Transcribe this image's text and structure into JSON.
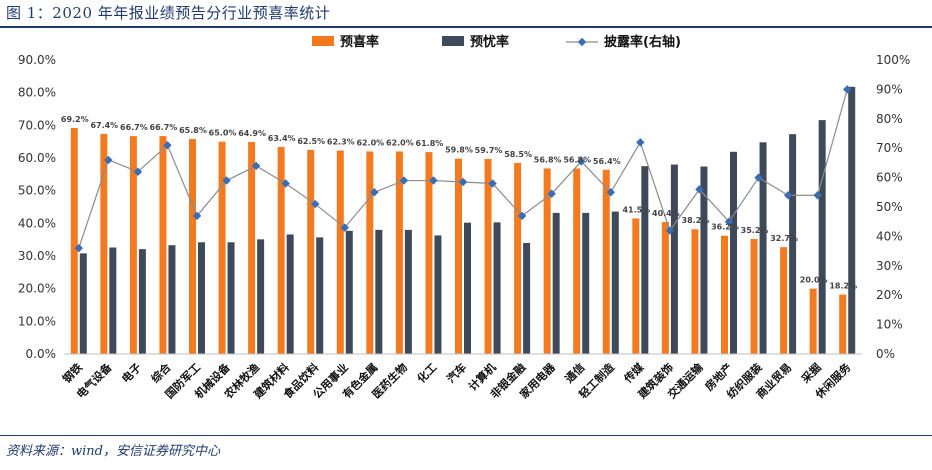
{
  "figure": {
    "title": "图 1：2020 年年报业绩预告分行业预喜率统计",
    "source": "资料来源：wind，安信证券研究中心"
  },
  "chart_data": {
    "type": "bar",
    "categories": [
      "钢铁",
      "电气设备",
      "电子",
      "综合",
      "国防军工",
      "机械设备",
      "农林牧渔",
      "建筑材料",
      "食品饮料",
      "公用事业",
      "有色金属",
      "医药生物",
      "化工",
      "汽车",
      "计算机",
      "非银金融",
      "家用电器",
      "通信",
      "轻工制造",
      "传媒",
      "建筑装饰",
      "交通运输",
      "房地产",
      "纺织服装",
      "商业贸易",
      "采掘",
      "休闲服务"
    ],
    "series": [
      {
        "name": "预喜率",
        "type": "bar",
        "axis": "left",
        "color": "#f47a20",
        "values": [
          69.2,
          67.4,
          66.7,
          66.7,
          65.8,
          65.0,
          64.9,
          63.4,
          62.5,
          62.3,
          62.0,
          62.0,
          61.8,
          59.8,
          59.7,
          58.5,
          56.8,
          56.8,
          56.4,
          41.5,
          40.4,
          38.2,
          36.2,
          35.2,
          32.7,
          20.0,
          18.2
        ],
        "labels": [
          "69.2%",
          "67.4%",
          "66.7%",
          "66.7%",
          "65.8%",
          "65.0%",
          "64.9%",
          "63.4%",
          "62.5%",
          "62.3%",
          "62.0%",
          "62.0%",
          "61.8%",
          "59.8%",
          "59.7%",
          "58.5%",
          "56.8%",
          "56.8%",
          "56.4%",
          "41.5%",
          "40.4%",
          "38.2%",
          "36.2%",
          "35.2%",
          "32.7%",
          "20.0%",
          "18.2%"
        ]
      },
      {
        "name": "预忧率",
        "type": "bar",
        "axis": "left",
        "color": "#3e4a5a",
        "values": [
          30.8,
          32.6,
          32.1,
          33.3,
          34.2,
          34.2,
          35.1,
          36.6,
          35.7,
          37.7,
          38.0,
          38.0,
          36.3,
          40.2,
          40.3,
          34.0,
          43.2,
          43.2,
          43.6,
          57.5,
          58.0,
          57.4,
          61.9,
          64.8,
          67.3,
          71.6,
          81.8
        ]
      },
      {
        "name": "披露率(右轴)",
        "type": "line",
        "axis": "right",
        "color": "#3b6db3",
        "values": [
          36,
          66,
          62,
          71,
          47,
          59,
          64,
          58,
          51,
          43,
          55,
          59,
          59,
          58.5,
          58,
          47,
          54.5,
          65.5,
          55,
          72,
          42,
          56,
          45,
          60,
          54,
          54,
          90
        ]
      }
    ],
    "y_left": {
      "min": 0,
      "max": 90,
      "step": 10,
      "ticks": [
        "0.0%",
        "10.0%",
        "20.0%",
        "30.0%",
        "40.0%",
        "50.0%",
        "60.0%",
        "70.0%",
        "80.0%",
        "90.0%"
      ]
    },
    "y_right": {
      "min": 0,
      "max": 100,
      "step": 10,
      "ticks": [
        "0%",
        "10%",
        "20%",
        "30%",
        "40%",
        "50%",
        "60%",
        "70%",
        "80%",
        "90%",
        "100%"
      ]
    },
    "legend_position": "top-center",
    "grid": false
  }
}
